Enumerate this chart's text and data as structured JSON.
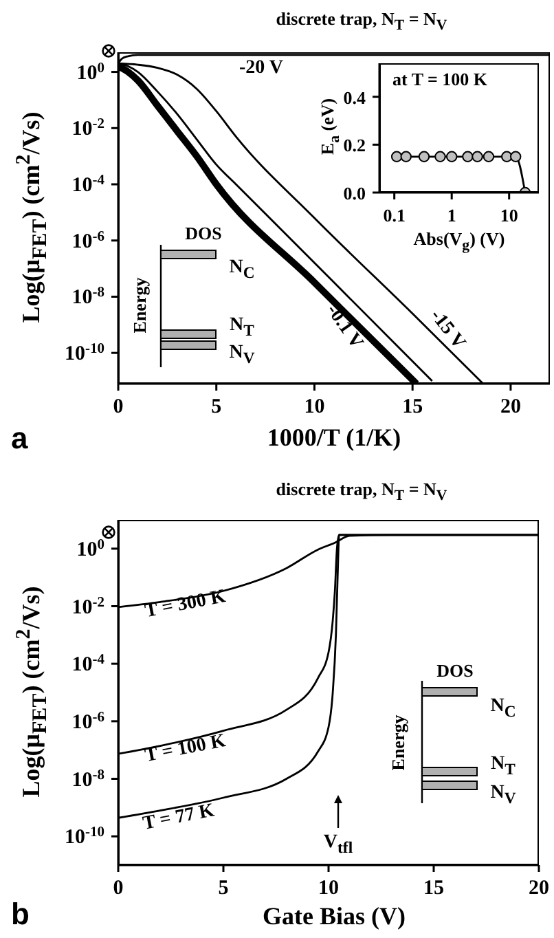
{
  "chart_data": [
    {
      "type": "line",
      "title": "discrete trap, N$_{T}$ = N$_{V}$",
      "xlabel": "1000/T (1/K)",
      "ylabel": "Log(μ$_{FET}$) (cm$^{2}$/Vs)",
      "log": "y",
      "xlim": [
        0,
        22
      ],
      "xticks": [
        0,
        5,
        10,
        15,
        20
      ],
      "ylim": [
        8e-12,
        5
      ],
      "yticks": [
        {
          "value": 1,
          "label": "10$^{0}$"
        },
        {
          "value": 0.01,
          "label": "10$^{-2}$"
        },
        {
          "value": 0.0001,
          "label": "10$^{-4}$"
        },
        {
          "value": 1e-06,
          "label": "10$^{-6}$"
        },
        {
          "value": 1e-08,
          "label": "10$^{-8}$"
        },
        {
          "value": 1e-10,
          "label": "10$^{-10}$"
        }
      ],
      "marker": "none",
      "annotations": [
        "a",
        "DOS",
        "Energy",
        "N$_{C}$",
        "N$_{T}$",
        "N$_{V}$"
      ],
      "series": [
        {
          "name": "-20 V",
          "color": "#000000",
          "x": [
            0,
            0.2,
            0.5,
            1,
            2,
            5,
            22
          ],
          "values": [
            2,
            3,
            3.6,
            4,
            4,
            4,
            4
          ]
        },
        {
          "name": "-15 V",
          "color": "#000000",
          "x": [
            0,
            1,
            2,
            3,
            4,
            5,
            6,
            10,
            15,
            18.6
          ],
          "values": [
            2,
            1.8,
            1.4,
            0.8,
            0.25,
            0.04,
            0.005,
            6.3e-06,
            2.5e-09,
            8e-12
          ]
        },
        {
          "color": "#000000",
          "x": [
            0,
            0.5,
            1,
            2,
            3,
            4,
            5,
            6,
            11,
            16
          ],
          "values": [
            2,
            1.6,
            1,
            0.2,
            0.032,
            0.004,
            0.0005,
            0.0001,
            3.2e-08,
            1e-11
          ]
        },
        {
          "name": "-0.1 V",
          "color": "#000000",
          "x": [
            0,
            0.5,
            1,
            2,
            3,
            4,
            5,
            10,
            15.2
          ],
          "values": [
            1.6,
            1,
            0.5,
            0.063,
            0.0079,
            0.001,
            0.0001,
            3.2e-08,
            8e-12
          ]
        }
      ]
    },
    {
      "type": "line",
      "title": "at T = 100 K",
      "xlabel": "Abs(V$_{g}$) (V)",
      "ylabel": "E$_{a}$ (eV)",
      "log": "x",
      "xlim": [
        0.055,
        33
      ],
      "xticks": [
        0.1,
        1,
        10
      ],
      "ylim": [
        0,
        0.54
      ],
      "yticks": [
        {
          "value": 0,
          "label": "0.0"
        },
        {
          "value": 0.2,
          "label": "0.2"
        },
        {
          "value": 0.4,
          "label": "0.4"
        }
      ],
      "marker": "circle",
      "series": [
        {
          "color": "#000000",
          "x": [
            0.11,
            0.16,
            0.33,
            0.63,
            1,
            1.9,
            2.8,
            4.4,
            9.1,
            13,
            19
          ],
          "values": [
            0.15,
            0.15,
            0.15,
            0.15,
            0.15,
            0.15,
            0.15,
            0.15,
            0.15,
            0.15,
            0
          ]
        }
      ]
    },
    {
      "type": "line",
      "title": "discrete trap, N$_{T}$ = N$_{V}$",
      "xlabel": "Gate Bias (V)",
      "ylabel": "Log(μ$_{FET}$) (cm$^{2}$/Vs)",
      "log": "y",
      "xlim": [
        0,
        20
      ],
      "xticks": [
        0,
        5,
        10,
        15,
        20
      ],
      "ylim": [
        1e-11,
        10
      ],
      "yticks": [
        {
          "value": 1,
          "label": "10$^{0}$"
        },
        {
          "value": 0.01,
          "label": "10$^{-2}$"
        },
        {
          "value": 0.0001,
          "label": "10$^{-4}$"
        },
        {
          "value": 1e-06,
          "label": "10$^{-6}$"
        },
        {
          "value": 1e-08,
          "label": "10$^{-8}$"
        },
        {
          "value": 1e-10,
          "label": "10$^{-10}$"
        }
      ],
      "marker": "none",
      "annotations": [
        "b",
        "V$_{tfl}$",
        "DOS",
        "Energy",
        "N$_{C}$",
        "N$_{T}$",
        "N$_{V}$"
      ],
      "series": [
        {
          "name": "T = 300 K",
          "color": "#000000",
          "x": [
            0,
            2,
            5,
            8,
            9.5,
            10.3,
            11,
            13,
            20
          ],
          "values": [
            0.0093,
            0.014,
            0.034,
            0.21,
            0.93,
            1.6,
            2.8,
            3,
            3
          ]
        },
        {
          "name": "T = 100 K",
          "color": "#000000",
          "x": [
            0,
            2,
            5,
            8,
            9.5,
            10,
            10.2,
            10.3,
            10.4,
            10.5,
            13,
            20
          ],
          "values": [
            7.4e-08,
            1.4e-07,
            4.7e-07,
            2.5e-06,
            3.2e-05,
            0.00025,
            0.0032,
            0.032,
            1,
            3,
            3,
            3
          ]
        },
        {
          "name": "T = 77 K",
          "color": "#000000",
          "x": [
            0,
            2,
            5,
            8,
            9.5,
            10,
            10.2,
            10.35,
            10.45,
            10.5,
            13,
            20
          ],
          "values": [
            4.4e-10,
            7.9e-10,
            2.2e-09,
            1e-08,
            8.9e-08,
            6.3e-07,
            1e-05,
            0.001,
            0.32,
            3,
            3,
            3
          ]
        }
      ]
    }
  ]
}
